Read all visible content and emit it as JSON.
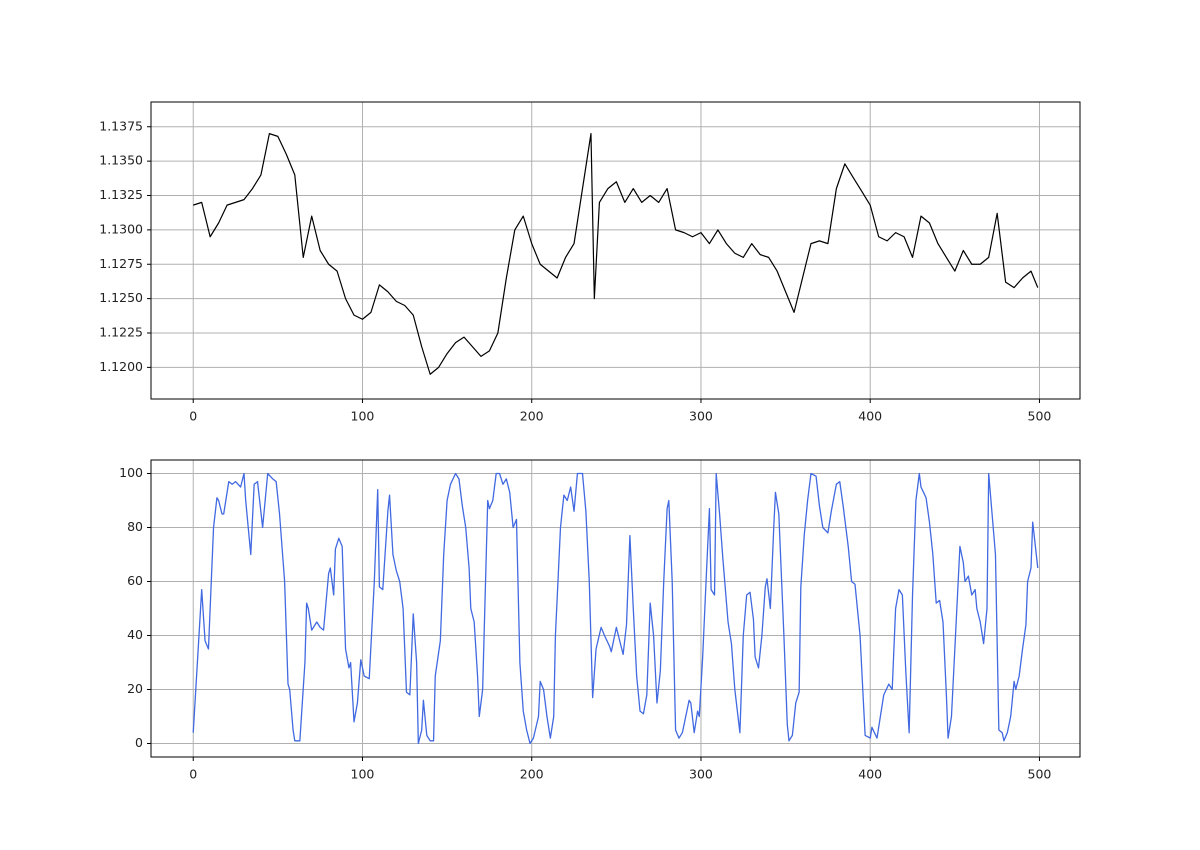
{
  "chart_data": [
    {
      "type": "line",
      "color": "#000000",
      "grid": true,
      "x": [
        0,
        5,
        10,
        15,
        20,
        25,
        30,
        35,
        40,
        45,
        50,
        55,
        60,
        65,
        70,
        75,
        80,
        85,
        90,
        95,
        100,
        105,
        110,
        115,
        120,
        125,
        130,
        135,
        140,
        145,
        150,
        155,
        160,
        165,
        170,
        175,
        180,
        185,
        190,
        195,
        200,
        205,
        210,
        215,
        220,
        225,
        230,
        235,
        237,
        240,
        245,
        250,
        255,
        260,
        265,
        270,
        275,
        280,
        285,
        290,
        295,
        300,
        305,
        310,
        315,
        320,
        325,
        330,
        335,
        340,
        345,
        350,
        355,
        360,
        365,
        370,
        375,
        380,
        385,
        390,
        395,
        400,
        405,
        410,
        415,
        420,
        425,
        430,
        435,
        440,
        445,
        450,
        455,
        460,
        465,
        470,
        475,
        480,
        485,
        490,
        495,
        499
      ],
      "values": [
        1.1318,
        1.132,
        1.1295,
        1.1305,
        1.1318,
        1.132,
        1.1322,
        1.133,
        1.134,
        1.137,
        1.1368,
        1.1355,
        1.134,
        1.128,
        1.131,
        1.1285,
        1.1275,
        1.127,
        1.125,
        1.1238,
        1.1235,
        1.124,
        1.126,
        1.1255,
        1.1248,
        1.1245,
        1.1238,
        1.1215,
        1.1195,
        1.12,
        1.121,
        1.1218,
        1.1222,
        1.1215,
        1.1208,
        1.1212,
        1.1225,
        1.1265,
        1.13,
        1.131,
        1.129,
        1.1275,
        1.127,
        1.1265,
        1.128,
        1.129,
        1.133,
        1.137,
        1.125,
        1.132,
        1.133,
        1.1335,
        1.132,
        1.133,
        1.132,
        1.1325,
        1.132,
        1.133,
        1.13,
        1.1298,
        1.1295,
        1.1298,
        1.129,
        1.13,
        1.129,
        1.1283,
        1.128,
        1.129,
        1.1282,
        1.128,
        1.127,
        1.1255,
        1.124,
        1.1265,
        1.129,
        1.1292,
        1.129,
        1.133,
        1.1348,
        1.1338,
        1.1328,
        1.1318,
        1.1295,
        1.1292,
        1.1298,
        1.1295,
        1.128,
        1.131,
        1.1305,
        1.129,
        1.128,
        1.127,
        1.1285,
        1.1275,
        1.1275,
        1.128,
        1.1312,
        1.1262,
        1.1258,
        1.1265,
        1.127,
        1.1258
      ],
      "xlim": [
        -24.95,
        523.95
      ],
      "xticks": [
        0,
        100,
        200,
        300,
        400,
        500
      ],
      "ylim": [
        1.1177,
        1.1393
      ],
      "yticks": [
        {
          "value": 1.12,
          "label": "1.1200"
        },
        {
          "value": 1.1225,
          "label": "1.1225"
        },
        {
          "value": 1.125,
          "label": "1.1250"
        },
        {
          "value": 1.1275,
          "label": "1.1275"
        },
        {
          "value": 1.13,
          "label": "1.1300"
        },
        {
          "value": 1.1325,
          "label": "1.1325"
        },
        {
          "value": 1.135,
          "label": "1.1350"
        },
        {
          "value": 1.1375,
          "label": "1.1375"
        }
      ]
    },
    {
      "type": "line",
      "color": "#4169e1",
      "grid": true,
      "x": [
        0,
        5,
        7,
        9,
        12,
        14,
        15,
        17,
        18,
        21,
        23,
        25,
        28,
        30,
        31,
        34,
        36,
        38,
        41,
        44,
        47,
        49,
        51,
        54,
        56,
        57,
        59,
        60,
        63,
        66,
        67,
        68,
        70,
        73,
        75,
        77,
        80,
        81,
        83,
        84,
        86,
        88,
        90,
        92,
        93,
        95,
        97,
        99,
        101,
        104,
        107,
        109,
        110,
        112,
        115,
        116,
        118,
        120,
        122,
        124,
        126,
        128,
        130,
        132,
        133,
        135,
        136,
        138,
        140,
        142,
        143,
        146,
        148,
        150,
        152,
        155,
        157,
        159,
        161,
        163,
        164,
        166,
        168,
        169,
        171,
        174,
        175,
        177,
        179,
        181,
        183,
        185,
        187,
        189,
        191,
        193,
        195,
        197,
        199,
        201,
        204,
        205,
        207,
        209,
        211,
        213,
        214,
        217,
        219,
        221,
        223,
        225,
        227,
        230,
        232,
        234,
        236,
        237,
        238,
        241,
        243,
        246,
        247,
        250,
        252,
        254,
        256,
        258,
        260,
        262,
        264,
        266,
        268,
        270,
        272,
        274,
        276,
        278,
        280,
        281,
        283,
        285,
        287,
        289,
        291,
        293,
        294,
        296,
        298,
        299,
        301,
        303,
        305,
        306,
        308,
        309,
        311,
        313,
        316,
        318,
        320,
        323,
        325,
        327,
        329,
        331,
        332,
        334,
        336,
        338,
        339,
        341,
        343,
        344,
        346,
        348,
        349,
        351,
        352,
        354,
        356,
        358,
        359,
        361,
        363,
        365,
        368,
        370,
        372,
        375,
        377,
        380,
        382,
        384,
        387,
        389,
        391,
        394,
        396,
        397,
        400,
        401,
        404,
        406,
        408,
        411,
        413,
        415,
        417,
        419,
        421,
        423,
        425,
        427,
        429,
        430,
        433,
        435,
        437,
        439,
        441,
        443,
        445,
        446,
        448,
        450,
        453,
        455,
        456,
        458,
        460,
        462,
        463,
        465,
        467,
        469,
        470,
        472,
        474,
        476,
        478,
        479,
        481,
        483,
        485,
        486,
        488,
        490,
        492,
        493,
        495,
        496,
        499
      ],
      "values": [
        4,
        57,
        38,
        35,
        80,
        91,
        90,
        85,
        85,
        97,
        96,
        97,
        95,
        100,
        90,
        70,
        96,
        97,
        80,
        100,
        98,
        97,
        85,
        60,
        22,
        20,
        5,
        1,
        1,
        30,
        52,
        50,
        42,
        45,
        43,
        42,
        63,
        65,
        55,
        72,
        76,
        73,
        35,
        28,
        30,
        8,
        15,
        31,
        25,
        24,
        60,
        94,
        58,
        57,
        86,
        92,
        70,
        64,
        60,
        50,
        19,
        18,
        48,
        30,
        0,
        5,
        16,
        3,
        1,
        1,
        25,
        38,
        70,
        90,
        96,
        100,
        98,
        88,
        80,
        65,
        50,
        45,
        25,
        10,
        20,
        90,
        87,
        90,
        100,
        100,
        96,
        98,
        93,
        80,
        83,
        30,
        12,
        5,
        0,
        2,
        10,
        23,
        20,
        10,
        2,
        10,
        40,
        80,
        92,
        90,
        95,
        86,
        100,
        100,
        86,
        60,
        17,
        26,
        35,
        43,
        40,
        36,
        34,
        43,
        38,
        33,
        44,
        77,
        50,
        25,
        12,
        11,
        18,
        52,
        40,
        15,
        27,
        60,
        87,
        90,
        60,
        5,
        2,
        4,
        10,
        16,
        15,
        4,
        12,
        10,
        32,
        60,
        87,
        57,
        55,
        100,
        85,
        68,
        45,
        37,
        20,
        4,
        40,
        55,
        56,
        46,
        32,
        28,
        40,
        58,
        61,
        50,
        80,
        93,
        85,
        55,
        40,
        7,
        1,
        3,
        15,
        19,
        58,
        77,
        90,
        100,
        99,
        88,
        80,
        78,
        86,
        96,
        97,
        88,
        73,
        60,
        59,
        40,
        15,
        3,
        2,
        6,
        2,
        10,
        18,
        22,
        20,
        50,
        57,
        55,
        27,
        4,
        55,
        90,
        100,
        95,
        91,
        82,
        70,
        52,
        53,
        45,
        18,
        2,
        10,
        35,
        73,
        67,
        60,
        62,
        55,
        57,
        50,
        45,
        37,
        50,
        100,
        85,
        70,
        5,
        4,
        1,
        4,
        10,
        23,
        20,
        25,
        35,
        44,
        60,
        65,
        82,
        65
      ],
      "xlim": [
        -24.95,
        523.95
      ],
      "xticks": [
        0,
        100,
        200,
        300,
        400,
        500
      ],
      "ylim": [
        -5,
        105
      ],
      "yticks": [
        0,
        20,
        40,
        60,
        80,
        100
      ]
    }
  ]
}
